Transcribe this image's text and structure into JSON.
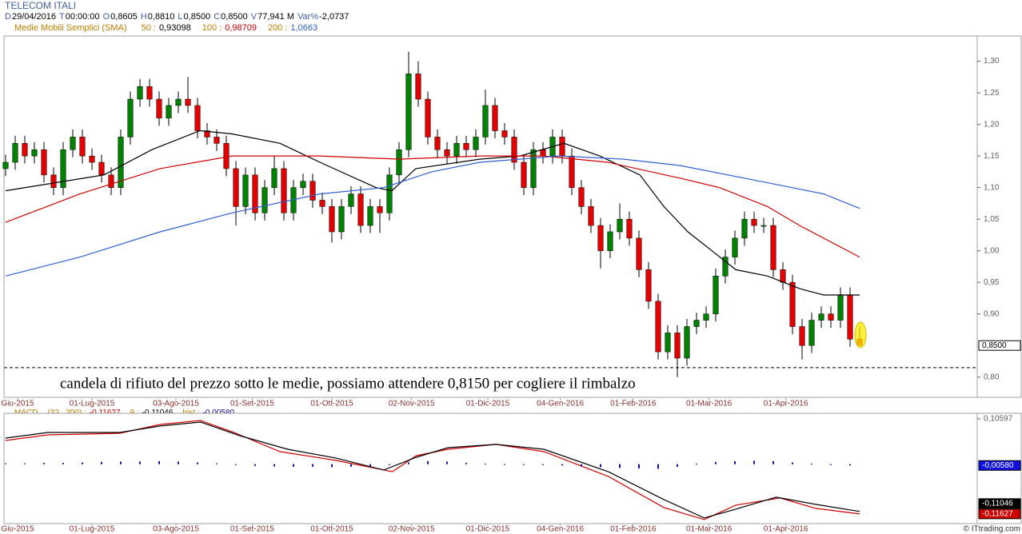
{
  "header": {
    "title": "TELECOM ITALI",
    "quote": [
      [
        "D",
        "29/04/2016"
      ],
      [
        "T",
        "00:00:00"
      ],
      [
        "O",
        "0,8605"
      ],
      [
        "H",
        "0,8810"
      ],
      [
        "L",
        "0,8500"
      ],
      [
        "C",
        "0,8500"
      ],
      [
        "V",
        "77,941 M"
      ],
      [
        "Var%",
        "-2,0737"
      ]
    ],
    "sma_title": "Medie Mobili Semplici (SMA)",
    "footer": "© ITtrading.com"
  },
  "chart_data": [
    {
      "type": "candlestick",
      "panel": "price",
      "annotation": "candela di rifiuto del prezzo sotto le medie, possiamo attendere 0,8150 per cogliere il rimbalzo",
      "reference_line": 0.815,
      "price_label": "0,8500",
      "up_color": "#008000",
      "down_color": "#e00000",
      "ylim": [
        0.768,
        1.34
      ],
      "yticks": [
        {
          "value": 1.3,
          "label": "1,30"
        },
        {
          "value": 1.25,
          "label": "1,25"
        },
        {
          "value": 1.2,
          "label": "1,20"
        },
        {
          "value": 1.15,
          "label": "1,15"
        },
        {
          "value": 1.1,
          "label": "1,10"
        },
        {
          "value": 1.05,
          "label": "1,05"
        },
        {
          "value": 1.0,
          "label": "1,00"
        },
        {
          "value": 0.95,
          "label": "0,95"
        },
        {
          "value": 0.9,
          "label": "0,90"
        },
        {
          "value": 0.8,
          "label": "0,80"
        }
      ],
      "xlim": [
        0,
        89
      ],
      "xticks": [
        {
          "value": 1.25,
          "label": "Giu-2015"
        },
        {
          "value": 9,
          "label": "01-Lug-2015"
        },
        {
          "value": 17.75,
          "label": "03-Ago-2015"
        },
        {
          "value": 25.7,
          "label": "01-Set-2015"
        },
        {
          "value": 34,
          "label": "01-Ott-2015"
        },
        {
          "value": 42.3,
          "label": "02-Nov-2015"
        },
        {
          "value": 50.25,
          "label": "01-Dic-2015"
        },
        {
          "value": 57.8,
          "label": "04-Gen-2016"
        },
        {
          "value": 65.4,
          "label": "01-Feb-2016"
        },
        {
          "value": 73.3,
          "label": "01-Mar-2016"
        },
        {
          "value": 81.3,
          "label": "01-Apr-2016"
        }
      ],
      "ohlc": [
        [
          1.13,
          1.152,
          1.118,
          1.14
        ],
        [
          1.14,
          1.182,
          1.128,
          1.17
        ],
        [
          1.17,
          1.182,
          1.138,
          1.15
        ],
        [
          1.15,
          1.172,
          1.138,
          1.16
        ],
        [
          1.16,
          1.172,
          1.108,
          1.12
        ],
        [
          1.12,
          1.132,
          1.088,
          1.1
        ],
        [
          1.1,
          1.172,
          1.088,
          1.16
        ],
        [
          1.16,
          1.192,
          1.148,
          1.18
        ],
        [
          1.18,
          1.192,
          1.138,
          1.15
        ],
        [
          1.15,
          1.162,
          1.128,
          1.14
        ],
        [
          1.14,
          1.152,
          1.108,
          1.12
        ],
        [
          1.12,
          1.132,
          1.088,
          1.1
        ],
        [
          1.1,
          1.192,
          1.088,
          1.18
        ],
        [
          1.18,
          1.252,
          1.168,
          1.24
        ],
        [
          1.24,
          1.272,
          1.228,
          1.26
        ],
        [
          1.26,
          1.272,
          1.228,
          1.24
        ],
        [
          1.24,
          1.252,
          1.198,
          1.21
        ],
        [
          1.21,
          1.242,
          1.198,
          1.23
        ],
        [
          1.23,
          1.252,
          1.218,
          1.24
        ],
        [
          1.24,
          1.275,
          1.218,
          1.23
        ],
        [
          1.23,
          1.242,
          1.178,
          1.19
        ],
        [
          1.19,
          1.202,
          1.168,
          1.18
        ],
        [
          1.18,
          1.192,
          1.158,
          1.17
        ],
        [
          1.17,
          1.182,
          1.118,
          1.13
        ],
        [
          1.13,
          1.142,
          1.04,
          1.07
        ],
        [
          1.07,
          1.132,
          1.058,
          1.12
        ],
        [
          1.12,
          1.132,
          1.048,
          1.06
        ],
        [
          1.06,
          1.112,
          1.048,
          1.1
        ],
        [
          1.1,
          1.15,
          1.088,
          1.13
        ],
        [
          1.13,
          1.142,
          1.048,
          1.06
        ],
        [
          1.06,
          1.112,
          1.048,
          1.1
        ],
        [
          1.1,
          1.122,
          1.088,
          1.11
        ],
        [
          1.11,
          1.122,
          1.068,
          1.08
        ],
        [
          1.08,
          1.092,
          1.058,
          1.07
        ],
        [
          1.07,
          1.082,
          1.013,
          1.03
        ],
        [
          1.03,
          1.082,
          1.018,
          1.07
        ],
        [
          1.07,
          1.102,
          1.058,
          1.09
        ],
        [
          1.09,
          1.102,
          1.028,
          1.04
        ],
        [
          1.04,
          1.082,
          1.028,
          1.07
        ],
        [
          1.07,
          1.082,
          1.028,
          1.06
        ],
        [
          1.06,
          1.132,
          1.048,
          1.12
        ],
        [
          1.12,
          1.172,
          1.108,
          1.16
        ],
        [
          1.16,
          1.315,
          1.148,
          1.28
        ],
        [
          1.28,
          1.3,
          1.228,
          1.24
        ],
        [
          1.24,
          1.252,
          1.168,
          1.18
        ],
        [
          1.18,
          1.192,
          1.148,
          1.16
        ],
        [
          1.16,
          1.172,
          1.138,
          1.15
        ],
        [
          1.15,
          1.182,
          1.138,
          1.17
        ],
        [
          1.17,
          1.182,
          1.148,
          1.16
        ],
        [
          1.16,
          1.192,
          1.148,
          1.18
        ],
        [
          1.18,
          1.255,
          1.168,
          1.23
        ],
        [
          1.23,
          1.242,
          1.178,
          1.19
        ],
        [
          1.19,
          1.202,
          1.168,
          1.18
        ],
        [
          1.18,
          1.192,
          1.128,
          1.14
        ],
        [
          1.14,
          1.152,
          1.088,
          1.1
        ],
        [
          1.1,
          1.172,
          1.088,
          1.16
        ],
        [
          1.16,
          1.172,
          1.138,
          1.15
        ],
        [
          1.15,
          1.192,
          1.138,
          1.18
        ],
        [
          1.18,
          1.192,
          1.138,
          1.15
        ],
        [
          1.15,
          1.162,
          1.088,
          1.1
        ],
        [
          1.1,
          1.112,
          1.058,
          1.07
        ],
        [
          1.07,
          1.082,
          1.028,
          1.04
        ],
        [
          1.04,
          1.052,
          0.972,
          1.0
        ],
        [
          1.0,
          1.042,
          0.988,
          1.03
        ],
        [
          1.03,
          1.075,
          1.018,
          1.05
        ],
        [
          1.05,
          1.062,
          1.008,
          1.02
        ],
        [
          1.02,
          1.032,
          0.958,
          0.97
        ],
        [
          0.97,
          0.982,
          0.908,
          0.92
        ],
        [
          0.92,
          0.932,
          0.828,
          0.84
        ],
        [
          0.84,
          0.882,
          0.828,
          0.87
        ],
        [
          0.87,
          0.882,
          0.8,
          0.83
        ],
        [
          0.83,
          0.892,
          0.818,
          0.88
        ],
        [
          0.88,
          0.902,
          0.868,
          0.89
        ],
        [
          0.89,
          0.912,
          0.878,
          0.9
        ],
        [
          0.9,
          0.972,
          0.888,
          0.96
        ],
        [
          0.96,
          1.002,
          0.948,
          0.99
        ],
        [
          0.99,
          1.032,
          0.978,
          1.02
        ],
        [
          1.02,
          1.062,
          1.008,
          1.05
        ],
        [
          1.05,
          1.062,
          1.028,
          1.04
        ],
        [
          1.04,
          1.052,
          1.028,
          1.04
        ],
        [
          1.04,
          1.052,
          0.958,
          0.97
        ],
        [
          0.97,
          0.982,
          0.938,
          0.95
        ],
        [
          0.95,
          0.962,
          0.868,
          0.88
        ],
        [
          0.88,
          0.892,
          0.828,
          0.85
        ],
        [
          0.85,
          0.902,
          0.838,
          0.89
        ],
        [
          0.89,
          0.912,
          0.878,
          0.9
        ],
        [
          0.9,
          0.912,
          0.878,
          0.89
        ],
        [
          0.89,
          0.942,
          0.878,
          0.93
        ],
        [
          0.93,
          0.942,
          0.848,
          0.86
        ],
        [
          0.8605,
          0.881,
          0.85,
          0.85
        ]
      ],
      "series": [
        {
          "name": "50 :",
          "value_label": "0,93098",
          "color": "#000000",
          "x": [
            0,
            10.25,
            15.25,
            20.25,
            23.6,
            28.6,
            32.75,
            38.6,
            40.25,
            42.75,
            49.4,
            53.6,
            58.2,
            61.9,
            66.1,
            68.6,
            71.1,
            73.6,
            76.1,
            79.4,
            82.75,
            85.25,
            89
          ],
          "values": [
            1.095,
            1.12,
            1.16,
            1.19,
            1.185,
            1.17,
            1.14,
            1.1,
            1.095,
            1.13,
            1.145,
            1.15,
            1.17,
            1.15,
            1.12,
            1.07,
            1.03,
            1.0,
            0.97,
            0.96,
            0.94,
            0.93,
            0.93
          ]
        },
        {
          "name": "100 :",
          "value_label": "0,98709",
          "color": "#d00000",
          "x": [
            0,
            7.75,
            16.1,
            23.6,
            32.75,
            41.1,
            49.4,
            56.1,
            62.75,
            70.25,
            74.4,
            79.4,
            82.75,
            89
          ],
          "values": [
            1.045,
            1.09,
            1.13,
            1.15,
            1.15,
            1.145,
            1.15,
            1.15,
            1.14,
            1.115,
            1.1,
            1.07,
            1.04,
            0.99
          ]
        },
        {
          "name": "200 :",
          "value_label": "1,0663",
          "color": "#3060d0",
          "x": [
            0,
            7.75,
            16.1,
            23.6,
            32.75,
            39.4,
            44.4,
            49.4,
            57.75,
            64.4,
            70.25,
            78.6,
            85.25,
            89
          ],
          "values": [
            0.96,
            0.99,
            1.03,
            1.06,
            1.09,
            1.1,
            1.125,
            1.14,
            1.15,
            1.145,
            1.135,
            1.11,
            1.09,
            1.067
          ]
        }
      ]
    },
    {
      "type": "macd",
      "panel": "indicator",
      "title": "MACD",
      "ylim": [
        -0.139,
        0.119
      ],
      "yticks": [
        {
          "value": 0.10597,
          "label": "0,10597"
        }
      ],
      "xlim": [
        0,
        89
      ],
      "series": [
        {
          "name": "(32 , 200) :",
          "value_label": "-0,11627",
          "color": "#d00000",
          "x": [
            0,
            4.4,
            11.9,
            16.1,
            20.3,
            23.6,
            28.6,
            34.4,
            40.3,
            42.8,
            46.1,
            51.1,
            56.1,
            62.8,
            68.6,
            72.8,
            76.1,
            80.7,
            84.4,
            89
          ],
          "values": [
            0.0555,
            0.0686,
            0.0723,
            0.0929,
            0.1022,
            0.076,
            0.0293,
            0.0088,
            -0.0174,
            0.02,
            0.0349,
            0.0462,
            0.0293,
            -0.0286,
            -0.1015,
            -0.1295,
            -0.0959,
            -0.079,
            -0.1033,
            -0.1163
          ]
        },
        {
          "name": "9 :",
          "value_label": "-0,11046",
          "color": "#000000",
          "x": [
            0,
            4.4,
            11.9,
            16.1,
            20.3,
            24.4,
            29.4,
            34.4,
            39.4,
            42.8,
            46.1,
            51.1,
            56.1,
            62.8,
            68.6,
            72.8,
            76.1,
            80.3,
            84.4,
            89
          ],
          "values": [
            0.0611,
            0.0742,
            0.0742,
            0.0892,
            0.0985,
            0.0667,
            0.0349,
            0.0144,
            -0.0136,
            0.0162,
            0.0387,
            0.0462,
            0.0349,
            -0.0174,
            -0.0828,
            -0.1258,
            -0.1052,
            -0.0772,
            -0.094,
            -0.1105
          ]
        },
        {
          "name": "hist :",
          "value_label": "-0,00580",
          "color": "#1010a0",
          "bars": true,
          "x": [
            0,
            2,
            4,
            6,
            8,
            10,
            12,
            14,
            16,
            18,
            20,
            22,
            24,
            26,
            28,
            30,
            32,
            34,
            36,
            38,
            40,
            42,
            44,
            46,
            48,
            50,
            52,
            54,
            56,
            58,
            60,
            62,
            64,
            66,
            68,
            70,
            72,
            74,
            76,
            78,
            80,
            82,
            84,
            86,
            88
          ],
          "values": [
            0.002,
            0.002,
            0.003,
            0.003,
            0.004,
            0.005,
            0.006,
            0.006,
            0.007,
            0.006,
            0.004,
            0.002,
            -0.002,
            -0.004,
            -0.005,
            -0.006,
            -0.006,
            -0.007,
            -0.006,
            -0.005,
            -0.002,
            0.004,
            0.007,
            0.006,
            0.003,
            0.001,
            0,
            -0.001,
            -0.002,
            -0.003,
            -0.005,
            -0.007,
            -0.009,
            -0.01,
            -0.011,
            -0.006,
            0.001,
            0.005,
            0.007,
            0.008,
            0.007,
            0.004,
            0.001,
            -0.002,
            -0.003
          ]
        }
      ]
    }
  ]
}
